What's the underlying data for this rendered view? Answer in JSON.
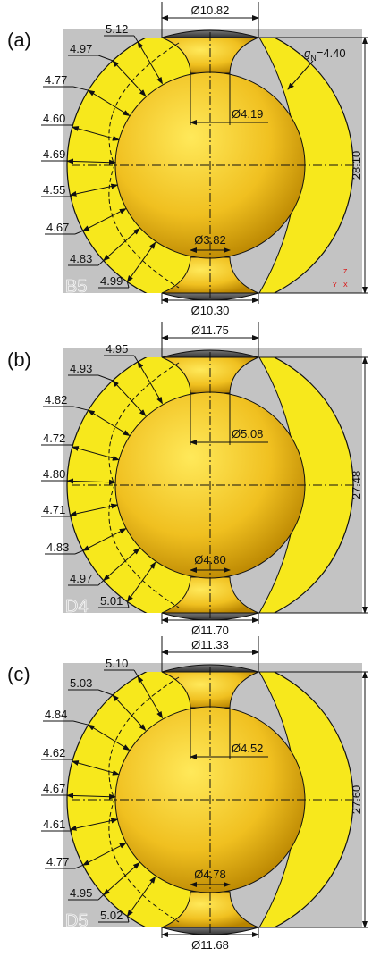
{
  "panels": [
    {
      "label": "(a)",
      "specimen": "B5",
      "top_diameter": "Ø10.82",
      "bottom_diameter": "Ø10.30",
      "neck_top": "Ø4.19",
      "neck_bottom": "Ø3.82",
      "height": "28.10",
      "gap": {
        "symbol": "g",
        "subscript": "N",
        "text": "=4.40"
      },
      "triad": [
        "Z",
        "Y",
        "X"
      ],
      "thicknesses": [
        "5.12",
        "4.97",
        "4.77",
        "4.60",
        "4.69",
        "4.55",
        "4.67",
        "4.83",
        "4.99"
      ]
    },
    {
      "label": "(b)",
      "specimen": "D4",
      "top_diameter": "Ø11.75",
      "bottom_diameter": "Ø11.70",
      "neck_top": "Ø5.08",
      "neck_bottom": "Ø4.80",
      "height": "27.48",
      "thicknesses": [
        "4.95",
        "4.93",
        "4.82",
        "4.72",
        "4.80",
        "4.71",
        "4.83",
        "4.97",
        "5.01"
      ]
    },
    {
      "label": "(c)",
      "specimen": "D5",
      "top_diameter": "Ø11.33",
      "bottom_diameter": "Ø11.68",
      "neck_top": "Ø4.52",
      "neck_bottom": "Ø4.78",
      "height": "27.60",
      "thicknesses": [
        "5.10",
        "5.03",
        "4.84",
        "4.62",
        "4.67",
        "4.61",
        "4.77",
        "4.95",
        "5.02"
      ]
    }
  ]
}
